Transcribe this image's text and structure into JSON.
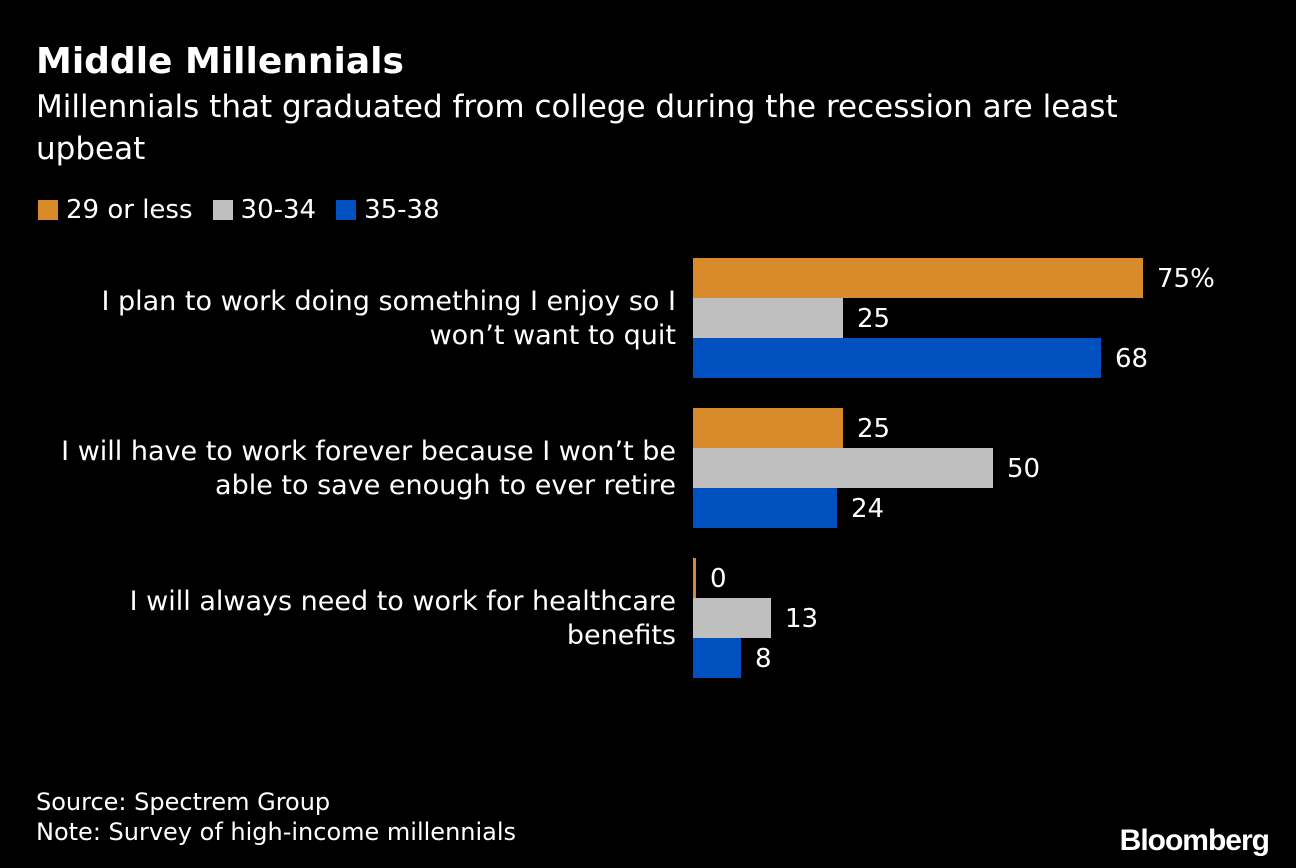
{
  "chart_data": {
    "type": "bar",
    "orientation": "horizontal",
    "title": "Middle Millennials",
    "subtitle": "Millennials that graduated from college during the recession are least upbeat",
    "categories": [
      "I plan to work doing something I enjoy so I won’t want to quit",
      "I will have to work forever because I won’t be able to save enough to ever retire",
      "I will always need to work for healthcare benefits"
    ],
    "category_lines": [
      [
        "I plan to work doing something I enjoy so I",
        "won’t want to quit"
      ],
      [
        "I will have to work forever because I won’t be",
        "able to save enough to ever retire"
      ],
      [
        "I will always need to work for healthcare",
        "benefits"
      ]
    ],
    "series": [
      {
        "name": "29 or less",
        "color": "#d98b2b",
        "values": [
          75,
          25,
          0
        ]
      },
      {
        "name": "30-34",
        "color": "#bfbfbf",
        "values": [
          25,
          50,
          13
        ]
      },
      {
        "name": "35-38",
        "color": "#0050bf",
        "values": [
          68,
          24,
          8
        ]
      }
    ],
    "value_labels": [
      [
        "75%",
        "25",
        "0"
      ],
      [
        "25",
        "50",
        "13"
      ],
      [
        "68",
        "24",
        "8"
      ]
    ],
    "xlim": [
      0,
      75
    ],
    "grid": false,
    "legend_position": "top-left"
  },
  "footer": {
    "source": "Source: Spectrem Group",
    "note": "Note: Survey of high-income millennials"
  },
  "brand": "Bloomberg",
  "colors": {
    "background": "#000000",
    "text": "#ffffff"
  }
}
